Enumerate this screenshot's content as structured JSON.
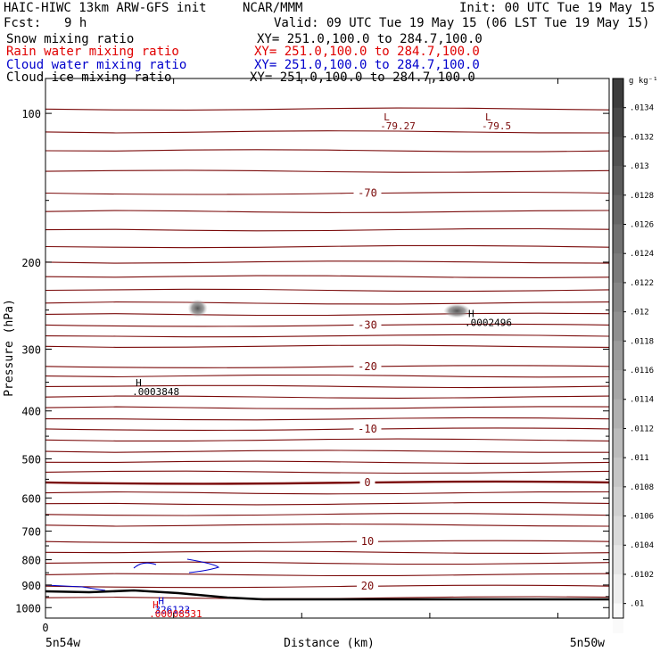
{
  "header": {
    "model": "HAIC-HIWC 13km ARW-GFS init",
    "org": "NCAR/MMM",
    "init": "Init: 00 UTC Tue 19 May 15",
    "fcst_label": "Fcst:",
    "fcst_value": "9 h",
    "valid": "Valid: 09 UTC Tue 19 May 15 (06 LST Tue 19 May 15)",
    "fields": [
      {
        "name": "Snow mixing ratio",
        "xy": "XY= 251.0,100.0 to 284.7,100.0",
        "color": "#000000"
      },
      {
        "name": "Rain water mixing ratio",
        "xy": "XY= 251.0,100.0 to 284.7,100.0",
        "color": "#e00000"
      },
      {
        "name": "Cloud water mixing ratio",
        "xy": "XY= 251.0,100.0 to 284.7,100.0",
        "color": "#0000cc"
      },
      {
        "name": "Cloud ice mixing ratio",
        "xy": "XY= 251.0,100.0 to 284.7,100.0",
        "color": "#000000"
      }
    ]
  },
  "chart_data": {
    "type": "cross-section",
    "ylabel": "Pressure (hPa)",
    "xlabel": "Distance (km)",
    "yscale": "log",
    "ylim": [
      1050,
      85
    ],
    "yticks": [
      100,
      200,
      300,
      400,
      500,
      600,
      700,
      800,
      900,
      1000
    ],
    "xticks": [
      "0"
    ],
    "x_endpoints": [
      "5n54w",
      "5n50w"
    ],
    "isotherm_color": "#7a0a0a",
    "isotherms": [
      {
        "label": "-70",
        "p": 145
      },
      {
        "label": "-30",
        "p": 268
      },
      {
        "label": "-20",
        "p": 325
      },
      {
        "label": "-10",
        "p": 435
      },
      {
        "label": "0",
        "p": 558,
        "bold": true
      },
      {
        "label": "10",
        "p": 735
      },
      {
        "label": "20",
        "p": 905
      }
    ],
    "extrema": [
      {
        "type": "L",
        "value": "-79.27",
        "x_frac": 0.6,
        "p": 100,
        "color": "#7a0a0a"
      },
      {
        "type": "L",
        "value": "-79.5",
        "x_frac": 0.78,
        "p": 100,
        "color": "#7a0a0a"
      },
      {
        "type": "H",
        "value": ".0002496",
        "x_frac": 0.75,
        "p": 250,
        "color": "#000000"
      },
      {
        "type": "H",
        "value": ".0003848",
        "x_frac": 0.16,
        "p": 345,
        "color": "#000000"
      },
      {
        "type": "H",
        "value": "326123",
        "x_frac": 0.2,
        "p": 953,
        "color": "#0000cc"
      },
      {
        "type": "H",
        "value": ".00008531",
        "x_frac": 0.19,
        "p": 970,
        "color": "#e00000"
      }
    ],
    "colorbar": {
      "unit": "g kg⁻¹",
      "labels": [
        ".0134",
        ".0132",
        ".013",
        ".0128",
        ".0126",
        ".0124",
        ".0122",
        ".012",
        ".0118",
        ".0116",
        ".0114",
        ".0112",
        ".011",
        ".0108",
        ".0106",
        ".0104",
        ".0102",
        ".01"
      ]
    }
  }
}
